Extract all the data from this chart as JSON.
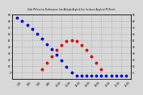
{
  "title": "Solar PV/Inverter Performance  Sun Altitude Angle & Sun Incidence Angle on PV Panels",
  "bg_color": "#d8d8d8",
  "plot_bg": "#d8d8d8",
  "grid_color": "#888888",
  "ylim": [
    -10,
    90
  ],
  "xlim": [
    0,
    1440
  ],
  "yticks": [
    0,
    10,
    20,
    30,
    40,
    50,
    60,
    70,
    80,
    90
  ],
  "xtick_vals": [
    120,
    240,
    360,
    480,
    600,
    720,
    840,
    960,
    1080,
    1200,
    1320,
    1440
  ],
  "xtick_labels": [
    "2:00",
    "4:00",
    "6:00",
    "8:00",
    "10:00",
    "12:00",
    "14:00",
    "16:00",
    "18:00",
    "20:00",
    "22:00",
    "24:00"
  ],
  "altitude_color": "#0000dd",
  "incidence_color": "#dd0000",
  "altitude_x": [
    60,
    120,
    180,
    240,
    300,
    360,
    420,
    480,
    540,
    600,
    660,
    720,
    780,
    840,
    900,
    960,
    1020,
    1080,
    1140,
    1200,
    1260,
    1320,
    1380
  ],
  "altitude_y": [
    85,
    80,
    74,
    67,
    60,
    52,
    44,
    36,
    27,
    18,
    9,
    0,
    -5,
    -5,
    -5,
    -5,
    -5,
    -5,
    -5,
    -5,
    -5,
    -5,
    -5
  ],
  "incidence_x": [
    360,
    420,
    480,
    540,
    600,
    660,
    720,
    780,
    840,
    900,
    960,
    1020,
    1080
  ],
  "incidence_y": [
    5,
    15,
    25,
    35,
    42,
    48,
    50,
    48,
    42,
    35,
    25,
    15,
    5
  ],
  "marker_size": 3
}
